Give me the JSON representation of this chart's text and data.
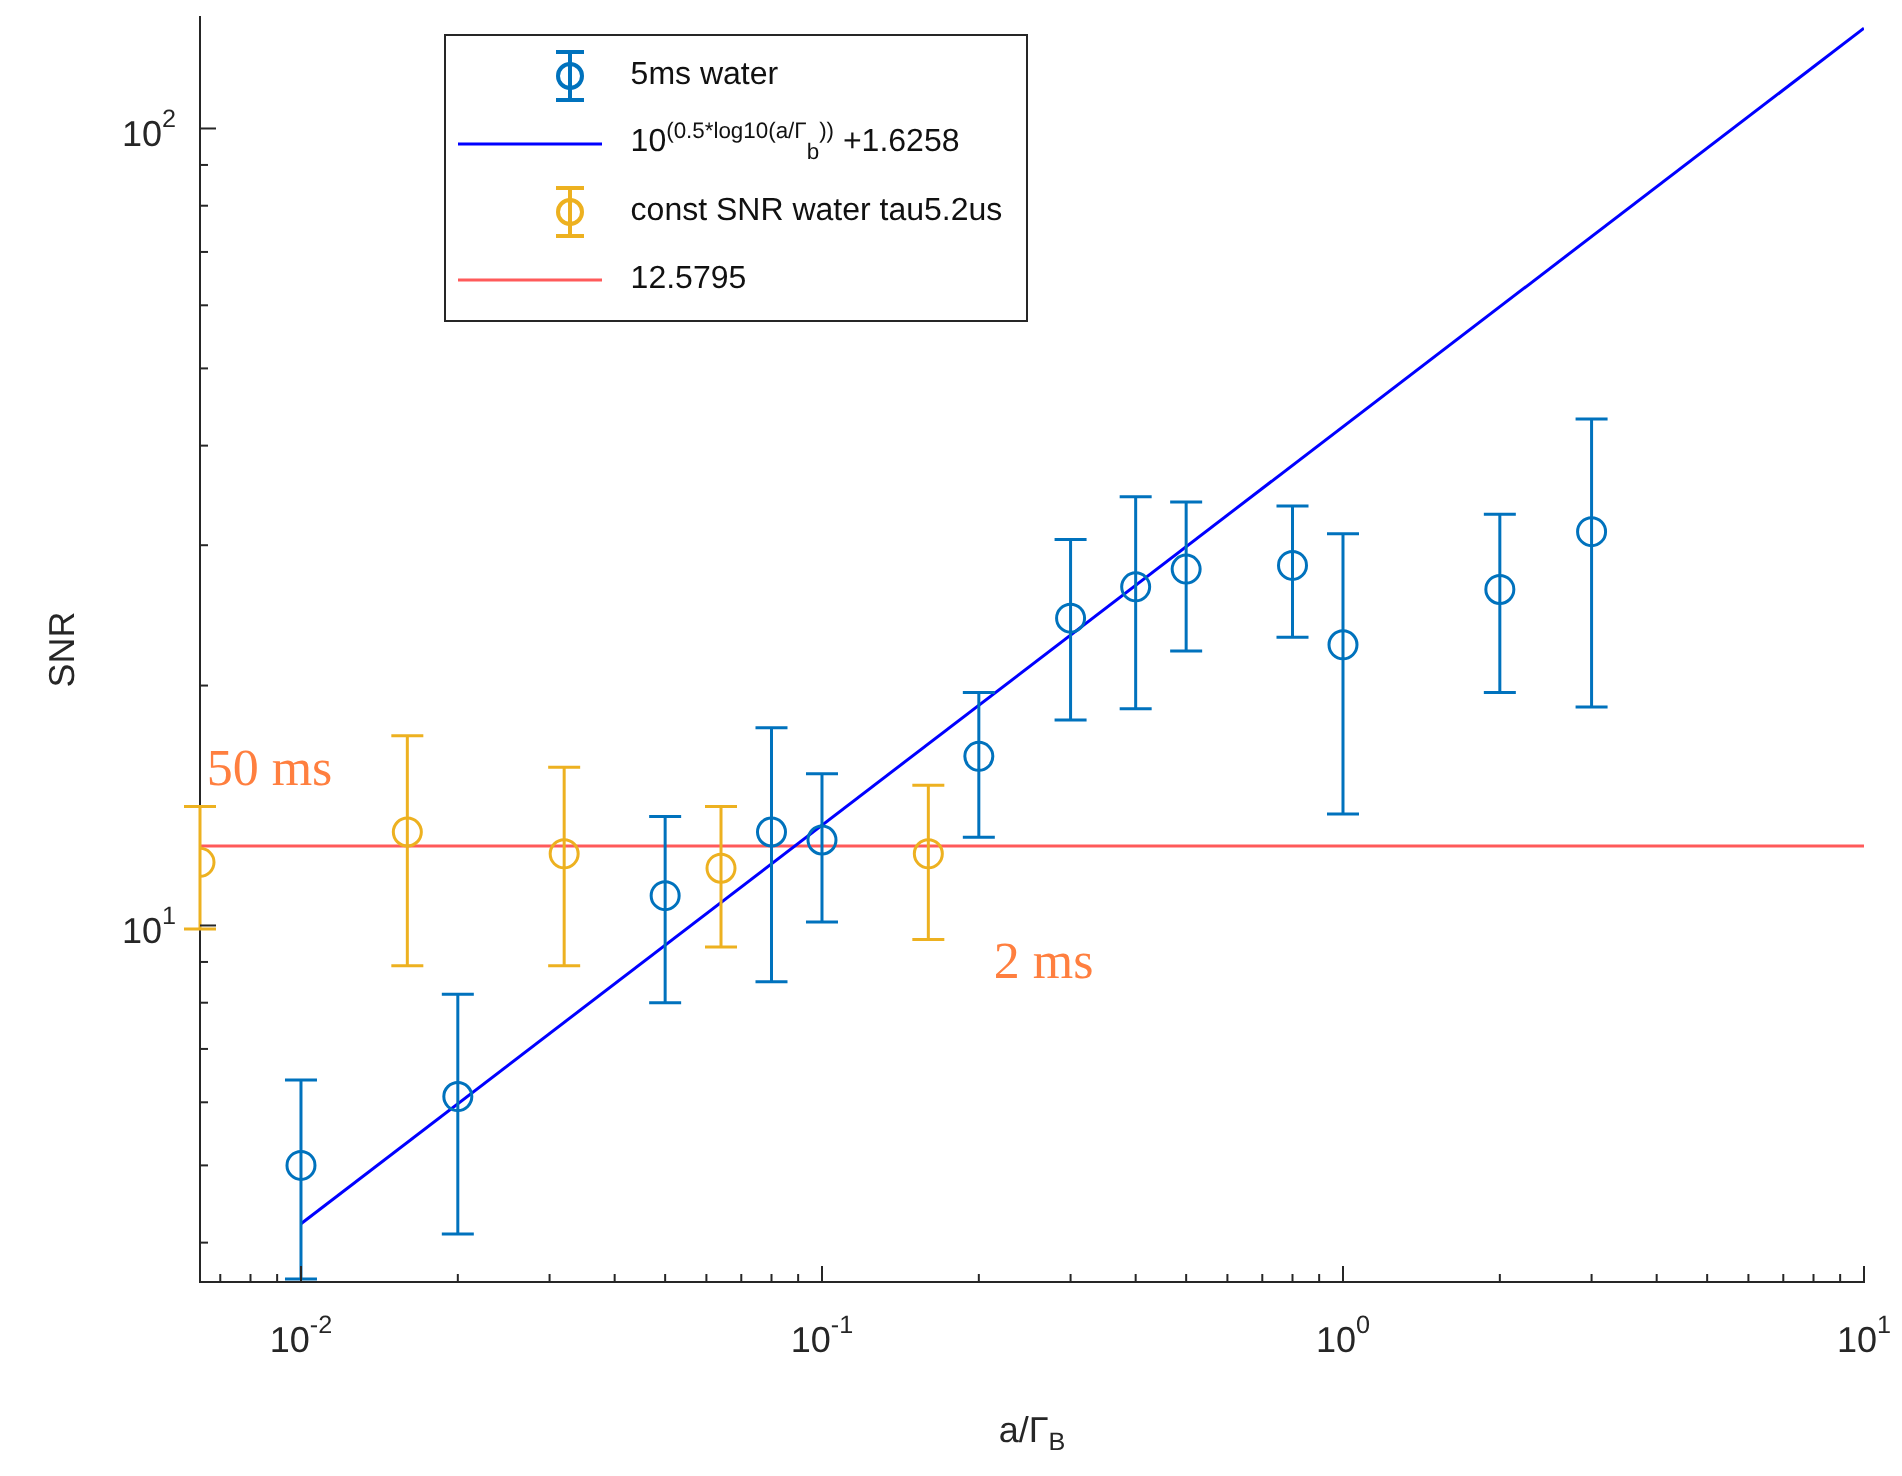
{
  "chart_data": {
    "type": "scatter",
    "xlabel": "a/Γ$_{B}$",
    "ylabel": "SNR",
    "log": "xy",
    "grid": false,
    "legend": "top",
    "marker": "circle",
    "xlim": [
      0.0064,
      10
    ],
    "ylim": [
      3.57,
      138
    ],
    "xticks": [
      {
        "value": 0.007,
        "label": null
      },
      {
        "value": 0.008,
        "label": null
      },
      {
        "value": 0.009,
        "label": null
      },
      {
        "value": 0.01,
        "label": "10$^{-2}$"
      },
      {
        "value": 0.02,
        "label": null
      },
      {
        "value": 0.03,
        "label": null
      },
      {
        "value": 0.04,
        "label": null
      },
      {
        "value": 0.05,
        "label": null
      },
      {
        "value": 0.06,
        "label": null
      },
      {
        "value": 0.07,
        "label": null
      },
      {
        "value": 0.08,
        "label": null
      },
      {
        "value": 0.09,
        "label": null
      },
      {
        "value": 0.1,
        "label": "10$^{-1}$"
      },
      {
        "value": 0.2,
        "label": null
      },
      {
        "value": 0.3,
        "label": null
      },
      {
        "value": 0.4,
        "label": null
      },
      {
        "value": 0.5,
        "label": null
      },
      {
        "value": 0.6,
        "label": null
      },
      {
        "value": 0.7,
        "label": null
      },
      {
        "value": 0.8,
        "label": null
      },
      {
        "value": 0.9,
        "label": null
      },
      {
        "value": 1,
        "label": "10$^{0}$"
      },
      {
        "value": 2,
        "label": null
      },
      {
        "value": 3,
        "label": null
      },
      {
        "value": 4,
        "label": null
      },
      {
        "value": 5,
        "label": null
      },
      {
        "value": 6,
        "label": null
      },
      {
        "value": 7,
        "label": null
      },
      {
        "value": 8,
        "label": null
      },
      {
        "value": 9,
        "label": null
      },
      {
        "value": 10,
        "label": "10$^{1}$"
      }
    ],
    "yticks": [
      {
        "value": 4,
        "label": null
      },
      {
        "value": 5,
        "label": null
      },
      {
        "value": 6,
        "label": null
      },
      {
        "value": 7,
        "label": null
      },
      {
        "value": 8,
        "label": null
      },
      {
        "value": 9,
        "label": null
      },
      {
        "value": 10,
        "label": "10$^{1}$"
      },
      {
        "value": 20,
        "label": null
      },
      {
        "value": 30,
        "label": null
      },
      {
        "value": 40,
        "label": null
      },
      {
        "value": 50,
        "label": null
      },
      {
        "value": 60,
        "label": null
      },
      {
        "value": 70,
        "label": null
      },
      {
        "value": 80,
        "label": null
      },
      {
        "value": 90,
        "label": null
      },
      {
        "value": 100,
        "label": "10$^{2}$"
      }
    ],
    "series": [
      {
        "name": "5ms water",
        "type": "scatter",
        "color": "#0072bd",
        "x": [
          0.01,
          0.02,
          0.05,
          0.08,
          0.1,
          0.2,
          0.3,
          0.4,
          0.5,
          0.8,
          1,
          2,
          3
        ],
        "values": [
          5.0,
          6.1,
          10.9,
          13.1,
          12.8,
          16.3,
          24.3,
          26.6,
          28.0,
          28.3,
          22.5,
          26.4,
          31.2
        ],
        "errors": [
          [
            3.6,
            6.4
          ],
          [
            4.1,
            8.2
          ],
          [
            8.0,
            13.7
          ],
          [
            8.5,
            17.7
          ],
          [
            10.1,
            15.5
          ],
          [
            12.9,
            19.6
          ],
          [
            18.1,
            30.5
          ],
          [
            18.7,
            34.5
          ],
          [
            22.1,
            34.0
          ],
          [
            23.0,
            33.6
          ],
          [
            13.8,
            31.0
          ],
          [
            19.6,
            32.8
          ],
          [
            18.8,
            43.2
          ]
        ]
      },
      {
        "name": "10$^{(0.5*log10(a/Γ}$$_{b}$$^{))}$ +1.6258",
        "type": "line",
        "marker": "none",
        "color": "#0000ff",
        "x": [
          0.01,
          10
        ],
        "values": [
          4.225,
          133.6
        ]
      },
      {
        "name": "const SNR water tau5.2us",
        "type": "scatter",
        "color": "#edb120",
        "x": [
          0.0064,
          0.016,
          0.032,
          0.064,
          0.16
        ],
        "values": [
          12.0,
          13.1,
          12.3,
          11.8,
          12.3
        ],
        "errors": [
          [
            9.9,
            14.1
          ],
          [
            8.9,
            17.3
          ],
          [
            8.9,
            15.8
          ],
          [
            9.4,
            14.1
          ],
          [
            9.6,
            15.0
          ]
        ]
      },
      {
        "name": "12.5795",
        "type": "line",
        "marker": "none",
        "color": "#ff5a5a",
        "x": [
          0.0064,
          10
        ],
        "values": [
          12.5795,
          12.5795
        ]
      }
    ],
    "annotations": [
      "50 ms",
      "2 ms"
    ]
  }
}
